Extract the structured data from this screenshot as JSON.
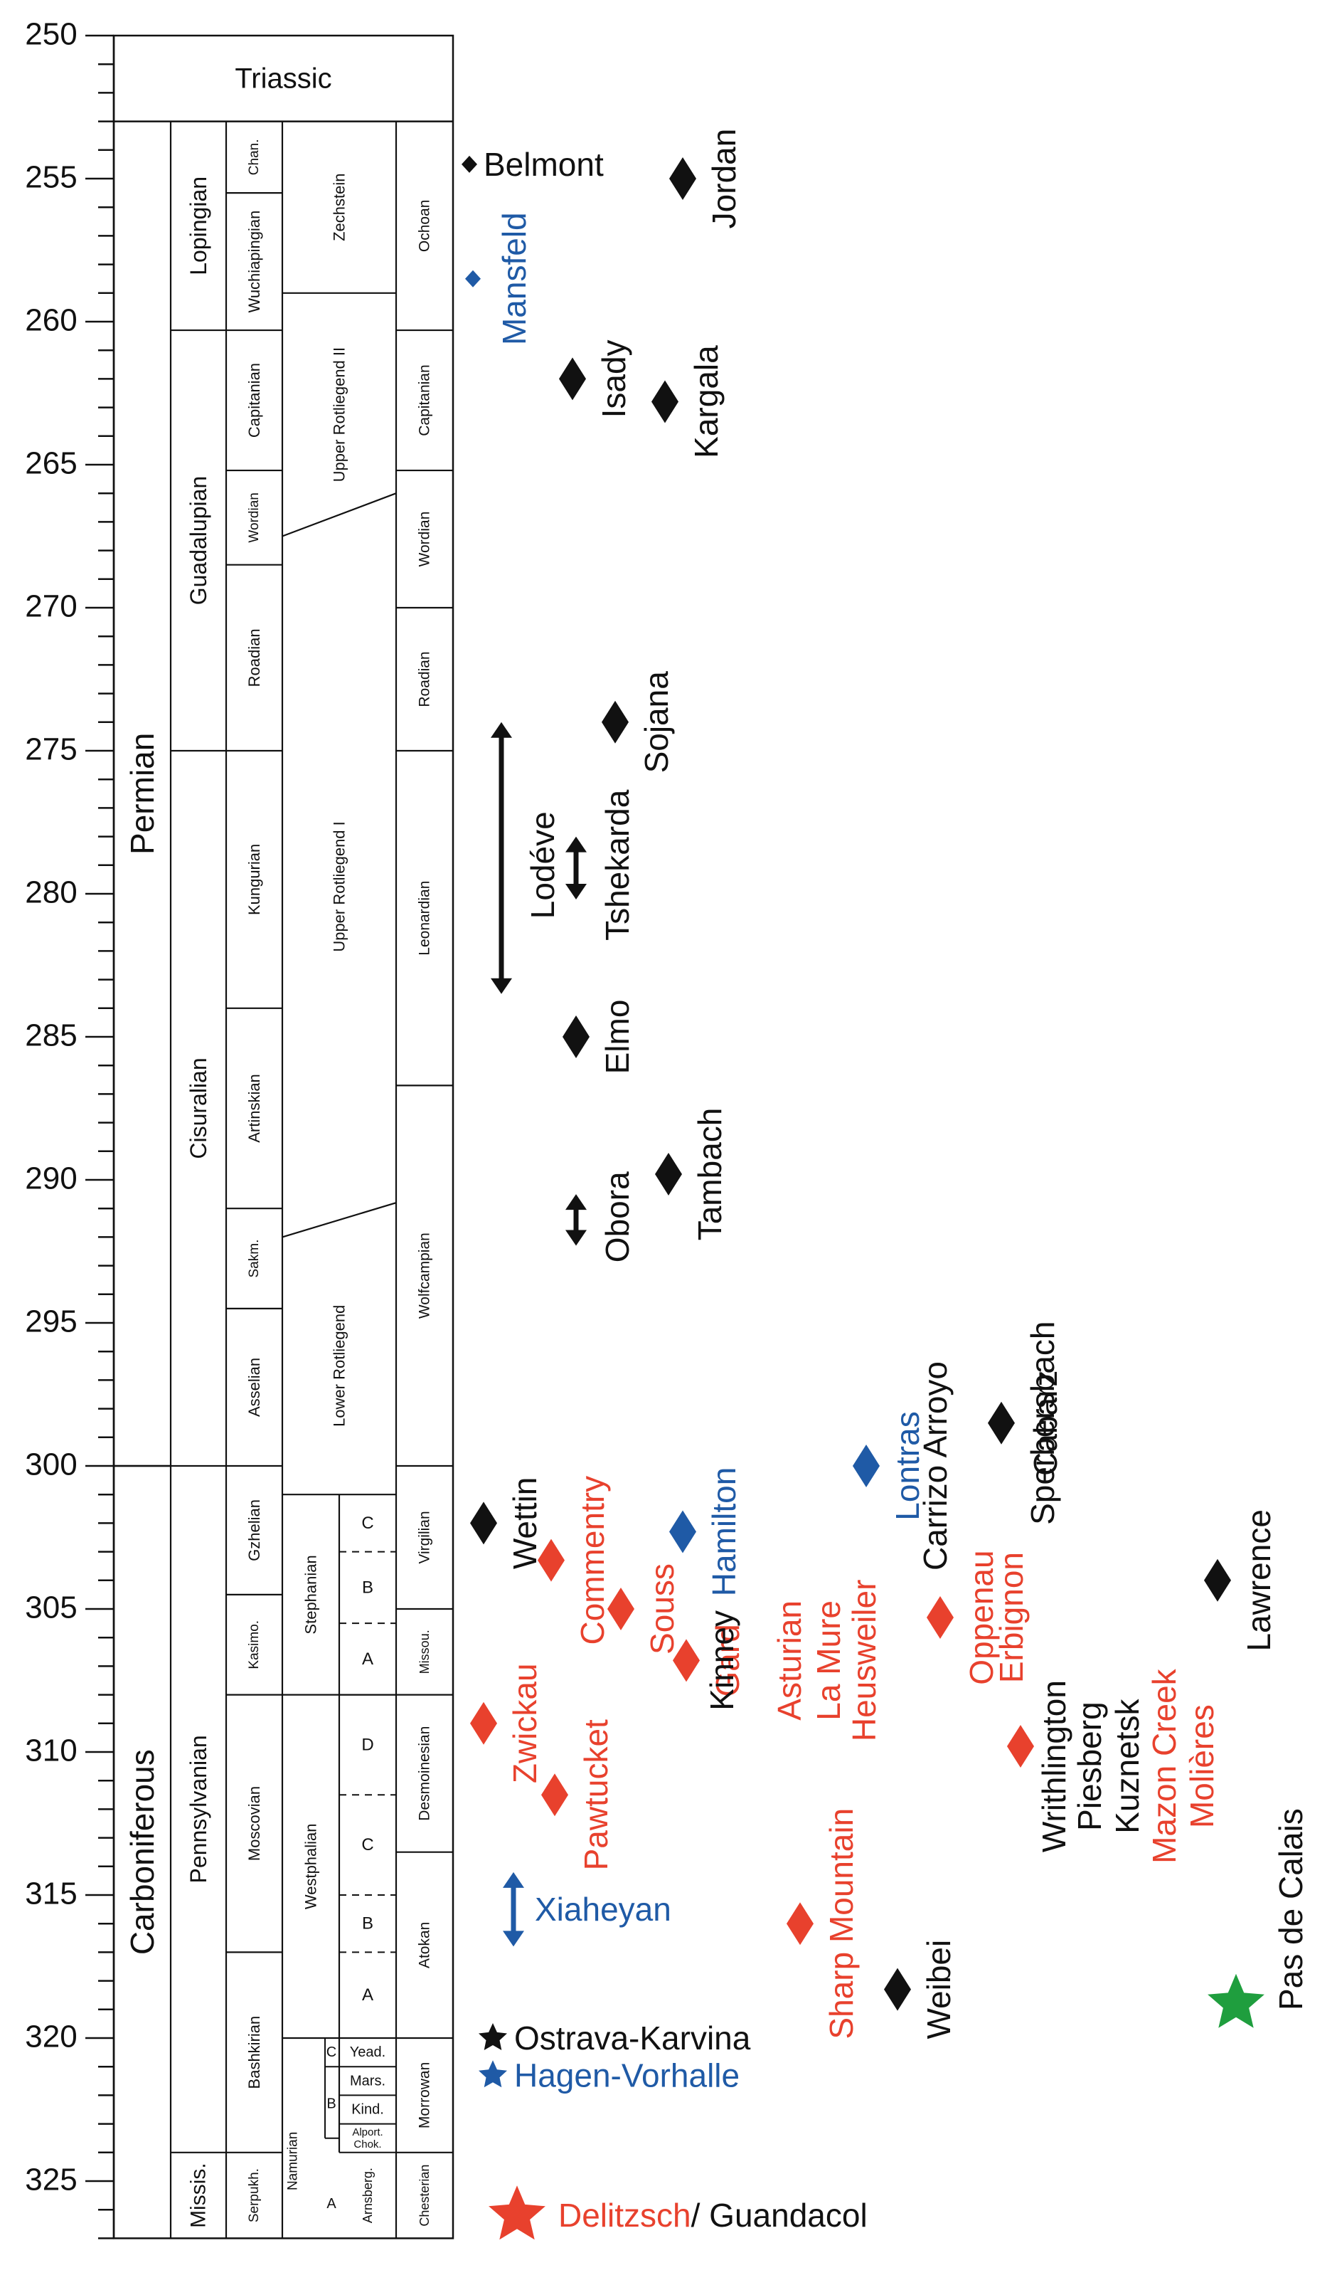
{
  "colors": {
    "black": "#111111",
    "red": "#e8412d",
    "blue": "#1f5aa6",
    "green": "#1f9e3e"
  },
  "axis": {
    "min": 250,
    "max": 327,
    "major_ticks": [
      250,
      255,
      260,
      265,
      270,
      275,
      280,
      285,
      290,
      295,
      300,
      305,
      310,
      315,
      320,
      325
    ]
  },
  "columns": {
    "triassic": "Triassic",
    "systems": [
      {
        "name": "Permian",
        "start": 253,
        "end": 300
      },
      {
        "name": "Carboniferous",
        "start": 300,
        "end": 327
      }
    ],
    "series": [
      {
        "name": "Lopingian",
        "start": 253,
        "end": 260.3
      },
      {
        "name": "Guadalupian",
        "start": 260.3,
        "end": 275
      },
      {
        "name": "Cisuralian",
        "start": 275,
        "end": 300
      },
      {
        "name": "Pennsylvanian",
        "start": 300,
        "end": 324
      },
      {
        "name": "Missis.",
        "start": 324,
        "end": 327
      }
    ],
    "stages": [
      {
        "name": "Chan.",
        "start": 253,
        "end": 255.5
      },
      {
        "name": "Wuchiapingian",
        "start": 255.5,
        "end": 260.3
      },
      {
        "name": "Capitanian",
        "start": 260.3,
        "end": 265.2
      },
      {
        "name": "Wordian",
        "start": 265.2,
        "end": 268.5
      },
      {
        "name": "Roadian",
        "start": 268.5,
        "end": 275
      },
      {
        "name": "Kungurian",
        "start": 275,
        "end": 284
      },
      {
        "name": "Artinskian",
        "start": 284,
        "end": 291
      },
      {
        "name": "Sakm.",
        "start": 291,
        "end": 294.5
      },
      {
        "name": "Asselian",
        "start": 294.5,
        "end": 300
      },
      {
        "name": "Gzhelian",
        "start": 300,
        "end": 304.5
      },
      {
        "name": "Kasimo.",
        "start": 304.5,
        "end": 308
      },
      {
        "name": "Moscovian",
        "start": 308,
        "end": 317
      },
      {
        "name": "Bashkirian",
        "start": 317,
        "end": 324
      },
      {
        "name": "Serpukh.",
        "start": 324,
        "end": 327
      }
    ],
    "european": [
      {
        "name": "Zechstein",
        "start": 253,
        "end": 259
      },
      {
        "name": "Upper Rotliegend II",
        "start": 259,
        "end": 267.5
      },
      {
        "name": "Upper Rotliegend I",
        "start": 267.5,
        "end": 292
      },
      {
        "name": "Lower Rotliegend",
        "start": 292,
        "end": 301
      },
      {
        "name": "Stephanian",
        "start": 301,
        "end": 308
      },
      {
        "name": "Westphalian",
        "start": 308,
        "end": 320
      },
      {
        "name": "Namurian",
        "start": 320,
        "end": 327
      }
    ],
    "substages": [
      {
        "name": "C",
        "start": 301,
        "end": 303
      },
      {
        "name": "B",
        "start": 303,
        "end": 305.5
      },
      {
        "name": "A",
        "start": 305.5,
        "end": 308
      },
      {
        "name": "D",
        "start": 308,
        "end": 311.5
      },
      {
        "name": "C",
        "start": 311.5,
        "end": 315
      },
      {
        "name": "B",
        "start": 315,
        "end": 317
      },
      {
        "name": "A",
        "start": 317,
        "end": 320
      },
      {
        "name": "Yead.",
        "start": 320,
        "end": 321
      },
      {
        "name": "Mars.",
        "start": 321,
        "end": 322
      },
      {
        "name": "Kind.",
        "start": 322,
        "end": 323
      },
      {
        "name": "Alport. Chok.",
        "start": 323,
        "end": 324
      },
      {
        "name": "Arnsberg.",
        "start": 324,
        "end": 327
      }
    ],
    "namurian_sub": [
      {
        "name": "C",
        "age": 320.5
      },
      {
        "name": "B",
        "age": 322.3
      },
      {
        "name": "A",
        "age": 325.8
      }
    ],
    "north_american": [
      {
        "name": "Ochoan",
        "start": 253,
        "end": 260.3
      },
      {
        "name": "Capitanian",
        "start": 260.3,
        "end": 265.2
      },
      {
        "name": "Wordian",
        "start": 265.2,
        "end": 270
      },
      {
        "name": "Roadian",
        "start": 270,
        "end": 275
      },
      {
        "name": "Leonardian",
        "start": 275,
        "end": 286.7
      },
      {
        "name": "Wolfcampian",
        "start": 286.7,
        "end": 300
      },
      {
        "name": "Virgilian",
        "start": 300,
        "end": 305
      },
      {
        "name": "Missou.",
        "start": 305,
        "end": 308
      },
      {
        "name": "Desmoinesian",
        "start": 308,
        "end": 313.5
      },
      {
        "name": "Atokan",
        "start": 313.5,
        "end": 320
      },
      {
        "name": "Morrowan",
        "start": 320,
        "end": 324
      },
      {
        "name": "Chesterian",
        "start": 324,
        "end": 327
      }
    ]
  },
  "localities": [
    {
      "name": "Belmont",
      "age": 254.5,
      "x": 660,
      "color": "black",
      "marker": "diamond-s",
      "label": "right"
    },
    {
      "name": "Mansfeld",
      "age": 258.5,
      "x": 665,
      "color": "blue",
      "marker": "diamond-s",
      "label": "vertical"
    },
    {
      "name": "Jordan",
      "age": 255,
      "x": 960,
      "color": "black",
      "marker": "diamond",
      "label": "vertical"
    },
    {
      "name": "Isady",
      "age": 262,
      "x": 805,
      "color": "black",
      "marker": "diamond",
      "label": "vertical"
    },
    {
      "name": "Kargala",
      "age": 262.8,
      "x": 935,
      "color": "black",
      "marker": "diamond",
      "label": "vertical"
    },
    {
      "name": "Sojana",
      "age": 274,
      "x": 865,
      "color": "black",
      "marker": "diamond",
      "label": "vertical"
    },
    {
      "name": "Lodéve",
      "age": 279,
      "x": 705,
      "color": "black",
      "marker": "range",
      "start": 274,
      "end": 283.5,
      "label": "vertical"
    },
    {
      "name": "Tshekarda",
      "age": 279,
      "x": 810,
      "color": "black",
      "marker": "range",
      "start": 278,
      "end": 280.2,
      "label": "vertical"
    },
    {
      "name": "Elmo",
      "age": 285,
      "x": 810,
      "color": "black",
      "marker": "diamond",
      "label": "vertical"
    },
    {
      "name": "Tambach",
      "age": 289.8,
      "x": 940,
      "color": "black",
      "marker": "diamond",
      "label": "vertical"
    },
    {
      "name": "Obora",
      "age": 291.3,
      "x": 810,
      "color": "black",
      "marker": "range",
      "start": 290.5,
      "end": 292.3,
      "label": "vertical"
    },
    {
      "name": "Wettin",
      "age": 302,
      "x": 680,
      "color": "black",
      "marker": "diamond",
      "label": "vertical"
    },
    {
      "name": "Commentry",
      "age": 303.3,
      "x": 775,
      "color": "red",
      "marker": "diamond",
      "label": "vertical"
    },
    {
      "name": "Zwickau",
      "age": 309,
      "x": 680,
      "color": "red",
      "marker": "diamond",
      "label": "vertical"
    },
    {
      "name": "Pawtucket",
      "age": 311.5,
      "x": 780,
      "color": "red",
      "marker": "diamond",
      "label": "vertical"
    },
    {
      "name": "Souss",
      "age": 305,
      "x": 873,
      "color": "red",
      "marker": "diamond",
      "label": "vertical"
    },
    {
      "name": "Gard",
      "age": 306.8,
      "x": 965,
      "color": "red",
      "marker": "diamond",
      "label": "vertical"
    },
    {
      "name": "Hamilton",
      "age": 302.3,
      "x": 960,
      "color": "blue",
      "marker": "diamond",
      "label": "vertical"
    },
    {
      "name": "Kinney",
      "age": 306.8,
      "x": 1015,
      "color": "black",
      "marker": "none",
      "label": "vertical"
    },
    {
      "name": "Asturian",
      "age": 306.8,
      "x": 1110,
      "color": "red",
      "marker": "none",
      "label": "vertical"
    },
    {
      "name": "La Mure",
      "age": 306.8,
      "x": 1165,
      "color": "red",
      "marker": "none",
      "label": "vertical"
    },
    {
      "name": "Heusweiler",
      "age": 306.8,
      "x": 1215,
      "color": "red",
      "marker": "none",
      "label": "vertical"
    },
    {
      "name": "Sharp Mountain",
      "age": 316,
      "x": 1125,
      "color": "red",
      "marker": "diamond",
      "label": "vertical"
    },
    {
      "name": "Weibei",
      "age": 318.3,
      "x": 1262,
      "color": "black",
      "marker": "diamond",
      "label": "vertical"
    },
    {
      "name": "Lontras",
      "age": 300,
      "x": 1218,
      "color": "blue",
      "marker": "diamond",
      "label": "vertical"
    },
    {
      "name": "Carrizo Arroyo",
      "age": 300,
      "x": 1315,
      "color": "black",
      "marker": "none",
      "label": "vertical"
    },
    {
      "name": "Oppenau",
      "age": 305.3,
      "x": 1322,
      "color": "red",
      "marker": "diamond",
      "label": "vertical"
    },
    {
      "name": "Erbignon",
      "age": 305.3,
      "x": 1422,
      "color": "red",
      "marker": "none",
      "label": "vertical"
    },
    {
      "name": "Sperbersbach",
      "age": 298.5,
      "x": 1408,
      "color": "black",
      "marker": "diamond",
      "label": "vertical"
    },
    {
      "name": "Cabarz",
      "age": 298.5,
      "x": 1470,
      "color": "black",
      "marker": "none",
      "label": "vertical"
    },
    {
      "name": "Lawrence",
      "age": 304,
      "x": 1712,
      "color": "black",
      "marker": "diamond",
      "label": "vertical"
    },
    {
      "name": "Withlington",
      "age": 309.8,
      "x": 1435,
      "color": "red",
      "marker": "diamond",
      "label": "none"
    },
    {
      "name": "Writhlington",
      "age": 310.5,
      "x": 1482,
      "color": "black",
      "marker": "none",
      "label": "vertical"
    },
    {
      "name": "Piesberg",
      "age": 310.5,
      "x": 1532,
      "color": "black",
      "marker": "none",
      "label": "vertical"
    },
    {
      "name": "Kuznetsk",
      "age": 310.5,
      "x": 1585,
      "color": "black",
      "marker": "none",
      "label": "vertical"
    },
    {
      "name": "Mazon Creek",
      "age": 310.5,
      "x": 1637,
      "color": "red",
      "marker": "none",
      "label": "vertical"
    },
    {
      "name": "Molières",
      "age": 310.5,
      "x": 1690,
      "color": "red",
      "marker": "none",
      "label": "vertical"
    },
    {
      "name": "Pas de Calais",
      "age": 315.5,
      "x": 1815,
      "color": "black",
      "marker": "none",
      "label": "vertical"
    },
    {
      "name": "Pas de Calais marker",
      "age": 318.8,
      "x": 1738,
      "color": "green",
      "marker": "star-l",
      "label": "none"
    },
    {
      "name": "Xiaheyan",
      "age": 315.5,
      "x": 722,
      "color": "blue",
      "marker": "range",
      "start": 314.2,
      "end": 316.8,
      "label": "right"
    },
    {
      "name": "Ostrava-Karvina",
      "age": 320,
      "x": 693,
      "color": "black",
      "marker": "star",
      "label": "right"
    },
    {
      "name": "Hagen-Vorhalle",
      "age": 321.3,
      "x": 693,
      "color": "blue",
      "marker": "star",
      "label": "right"
    },
    {
      "name": "Delitzsch",
      "age": 326.2,
      "x": 727,
      "color": "red",
      "marker": "star-l",
      "label": "right-split",
      "second": "Guandacol"
    }
  ]
}
